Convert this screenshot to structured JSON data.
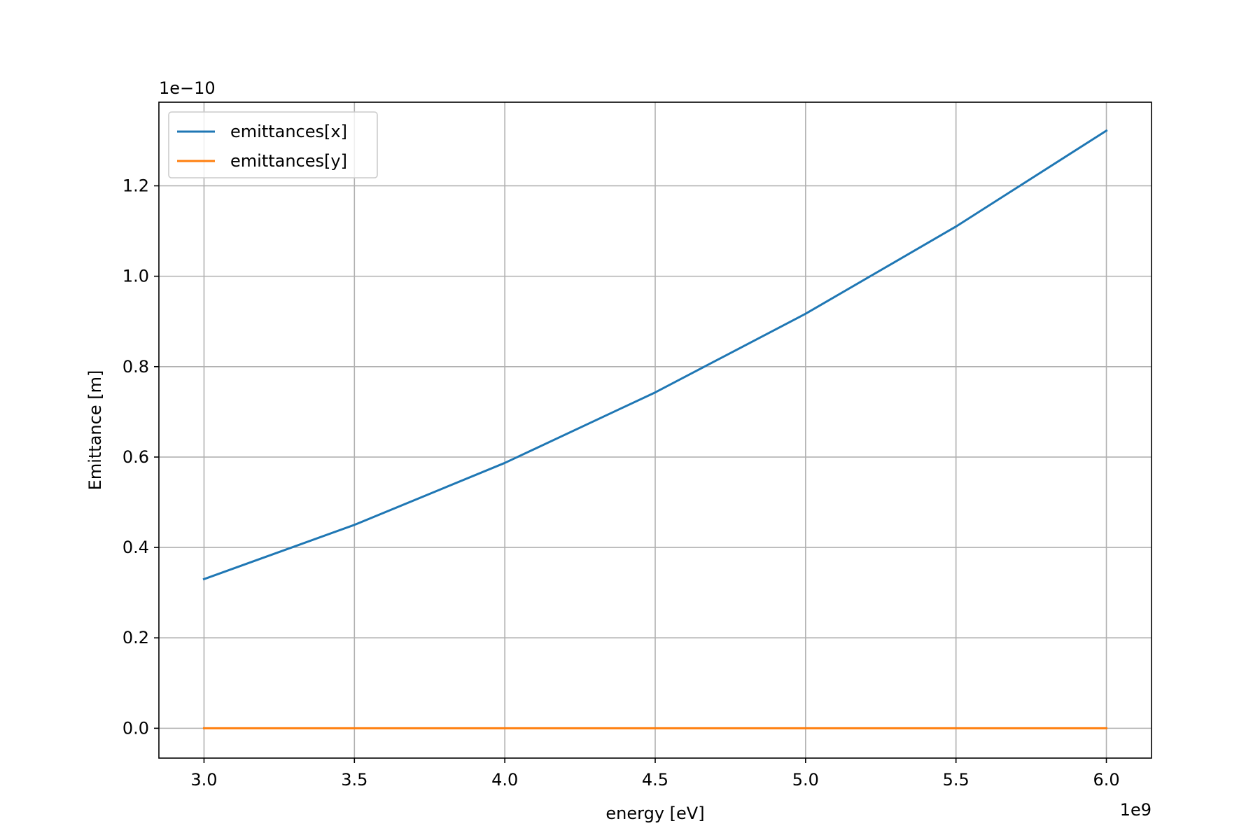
{
  "chart_data": {
    "type": "line",
    "xlabel": "energy [eV]",
    "ylabel": "Emittance [m]",
    "x_offset_label": "1e9",
    "y_offset_label": "1e−10",
    "x": [
      3.0,
      3.5,
      4.0,
      4.5,
      5.0,
      5.5,
      6.0
    ],
    "xlim": [
      2.85,
      6.15
    ],
    "ylim": [
      -0.066,
      1.385
    ],
    "xticks": [
      3.0,
      3.5,
      4.0,
      4.5,
      5.0,
      5.5,
      6.0
    ],
    "xtick_labels": [
      "3.0",
      "3.5",
      "4.0",
      "4.5",
      "5.0",
      "5.5",
      "6.0"
    ],
    "yticks": [
      0.0,
      0.2,
      0.4,
      0.6,
      0.8,
      1.0,
      1.2
    ],
    "ytick_labels": [
      "0.0",
      "0.2",
      "0.4",
      "0.6",
      "0.8",
      "1.0",
      "1.2"
    ],
    "grid": true,
    "legend_position": "top-left",
    "series": [
      {
        "name": "emittances[x]",
        "color": "#1f77b4",
        "values": [
          0.33,
          0.45,
          0.587,
          0.743,
          0.917,
          1.11,
          1.322
        ]
      },
      {
        "name": "emittances[y]",
        "color": "#ff7f0e",
        "values": [
          0.0,
          0.0,
          0.0,
          0.0,
          0.0,
          0.0,
          0.0
        ]
      }
    ]
  }
}
